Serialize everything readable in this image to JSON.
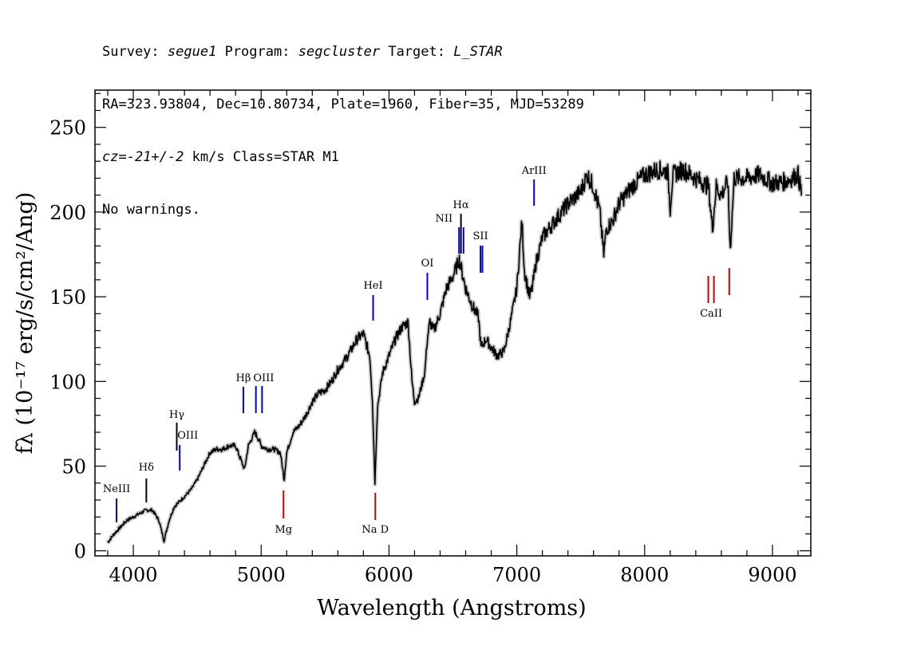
{
  "header": {
    "survey_label": "Survey:",
    "survey": "segue1",
    "program_label": "Program:",
    "program": "segcluster",
    "target_label": "Target:",
    "target": "L_STAR",
    "line2": "RA=323.93804, Dec=10.80734, Plate=1960, Fiber=35, MJD=53289",
    "cz_label": "cz=",
    "cz": "-21+/-2",
    "line3_rest": " km/s Class=STAR M1",
    "line4": "No warnings."
  },
  "chart_data": {
    "type": "line",
    "title": "",
    "xlabel": "Wavelength (Angstroms)",
    "ylabel": "fλ (10⁻¹⁷ erg/s/cm²/Ang)",
    "xlim": [
      3700,
      9300
    ],
    "ylim": [
      -3,
      272
    ],
    "x_ticks": [
      4000,
      5000,
      6000,
      7000,
      8000,
      9000
    ],
    "y_ticks": [
      0,
      50,
      100,
      150,
      200,
      250
    ],
    "series": [
      {
        "color": "#000000",
        "points": [
          [
            3800,
            5
          ],
          [
            3850,
            10
          ],
          [
            3900,
            14
          ],
          [
            3950,
            18
          ],
          [
            4000,
            20
          ],
          [
            4050,
            22
          ],
          [
            4100,
            24
          ],
          [
            4150,
            24
          ],
          [
            4200,
            18
          ],
          [
            4240,
            6
          ],
          [
            4280,
            18
          ],
          [
            4320,
            26
          ],
          [
            4400,
            32
          ],
          [
            4450,
            36
          ],
          [
            4500,
            42
          ],
          [
            4550,
            50
          ],
          [
            4600,
            58
          ],
          [
            4650,
            60
          ],
          [
            4700,
            60
          ],
          [
            4750,
            62
          ],
          [
            4800,
            62
          ],
          [
            4850,
            52
          ],
          [
            4870,
            48
          ],
          [
            4900,
            62
          ],
          [
            4950,
            70
          ],
          [
            4980,
            66
          ],
          [
            5000,
            62
          ],
          [
            5050,
            60
          ],
          [
            5100,
            60
          ],
          [
            5150,
            58
          ],
          [
            5180,
            42
          ],
          [
            5200,
            58
          ],
          [
            5250,
            70
          ],
          [
            5300,
            74
          ],
          [
            5350,
            80
          ],
          [
            5400,
            88
          ],
          [
            5450,
            93
          ],
          [
            5500,
            95
          ],
          [
            5550,
            100
          ],
          [
            5600,
            107
          ],
          [
            5650,
            112
          ],
          [
            5700,
            118
          ],
          [
            5750,
            125
          ],
          [
            5800,
            128
          ],
          [
            5850,
            115
          ],
          [
            5870,
            90
          ],
          [
            5890,
            40
          ],
          [
            5910,
            85
          ],
          [
            5950,
            105
          ],
          [
            6000,
            115
          ],
          [
            6050,
            125
          ],
          [
            6100,
            132
          ],
          [
            6150,
            135
          ],
          [
            6180,
            100
          ],
          [
            6200,
            88
          ],
          [
            6230,
            90
          ],
          [
            6280,
            105
          ],
          [
            6300,
            125
          ],
          [
            6320,
            135
          ],
          [
            6350,
            130
          ],
          [
            6400,
            140
          ],
          [
            6450,
            155
          ],
          [
            6500,
            162
          ],
          [
            6550,
            172
          ],
          [
            6570,
            165
          ],
          [
            6600,
            155
          ],
          [
            6650,
            145
          ],
          [
            6700,
            138
          ],
          [
            6720,
            120
          ],
          [
            6760,
            125
          ],
          [
            6800,
            120
          ],
          [
            6850,
            115
          ],
          [
            6900,
            118
          ],
          [
            6950,
            135
          ],
          [
            7000,
            155
          ],
          [
            7040,
            195
          ],
          [
            7060,
            165
          ],
          [
            7100,
            150
          ],
          [
            7120,
            155
          ],
          [
            7150,
            170
          ],
          [
            7200,
            185
          ],
          [
            7300,
            195
          ],
          [
            7400,
            205
          ],
          [
            7500,
            212
          ],
          [
            7550,
            222
          ],
          [
            7600,
            215
          ],
          [
            7650,
            200
          ],
          [
            7680,
            175
          ],
          [
            7700,
            190
          ],
          [
            7750,
            195
          ],
          [
            7800,
            205
          ],
          [
            7900,
            215
          ],
          [
            8000,
            222
          ],
          [
            8100,
            225
          ],
          [
            8180,
            224
          ],
          [
            8200,
            202
          ],
          [
            8220,
            222
          ],
          [
            8300,
            225
          ],
          [
            8400,
            220
          ],
          [
            8500,
            215
          ],
          [
            8530,
            190
          ],
          [
            8560,
            215
          ],
          [
            8600,
            210
          ],
          [
            8650,
            218
          ],
          [
            8670,
            178
          ],
          [
            8700,
            220
          ],
          [
            8800,
            220
          ],
          [
            8900,
            222
          ],
          [
            9000,
            217
          ],
          [
            9100,
            218
          ],
          [
            9200,
            222
          ],
          [
            9230,
            210
          ]
        ]
      }
    ],
    "emission_lines": [
      {
        "label": "NeIII",
        "wavelength": 3869,
        "color": "#0000cc"
      },
      {
        "label": "Hδ",
        "wavelength": 4102,
        "color": "#000000"
      },
      {
        "label": "Hγ",
        "wavelength": 4340,
        "color": "#000000"
      },
      {
        "label": "OIII",
        "wavelength": 4363,
        "color": "#0000cc"
      },
      {
        "label": "Hβ",
        "wavelength": 4861,
        "color": "#0000cc"
      },
      {
        "label": "OIII",
        "wavelength": 4959,
        "color": "#0000cc"
      },
      {
        "label": "OIII",
        "wavelength": 5007,
        "color": "#0000cc"
      },
      {
        "label": "HeI",
        "wavelength": 5876,
        "color": "#0000cc"
      },
      {
        "label": "OI",
        "wavelength": 6300,
        "color": "#0000cc"
      },
      {
        "label": "NII",
        "wavelength": 6548,
        "color": "#0000cc"
      },
      {
        "label": "Hα",
        "wavelength": 6563,
        "color": "#000000"
      },
      {
        "label": "NII",
        "wavelength": 6583,
        "color": "#0000cc"
      },
      {
        "label": "SII",
        "wavelength": 6716,
        "color": "#0000cc"
      },
      {
        "label": "SII",
        "wavelength": 6731,
        "color": "#0000cc"
      },
      {
        "label": "ArIII",
        "wavelength": 7135,
        "color": "#0000cc"
      }
    ],
    "absorption_lines": [
      {
        "label": "Mg",
        "wavelength": 5175,
        "color": "#cc0000"
      },
      {
        "label": "Na D",
        "wavelength": 5893,
        "color": "#cc0000"
      },
      {
        "label": "CaII",
        "wavelength": 8498,
        "color": "#cc0000"
      },
      {
        "label": "CaII",
        "wavelength": 8542,
        "color": "#cc0000"
      },
      {
        "label": "CaII",
        "wavelength": 8662,
        "color": "#cc0000"
      }
    ]
  }
}
